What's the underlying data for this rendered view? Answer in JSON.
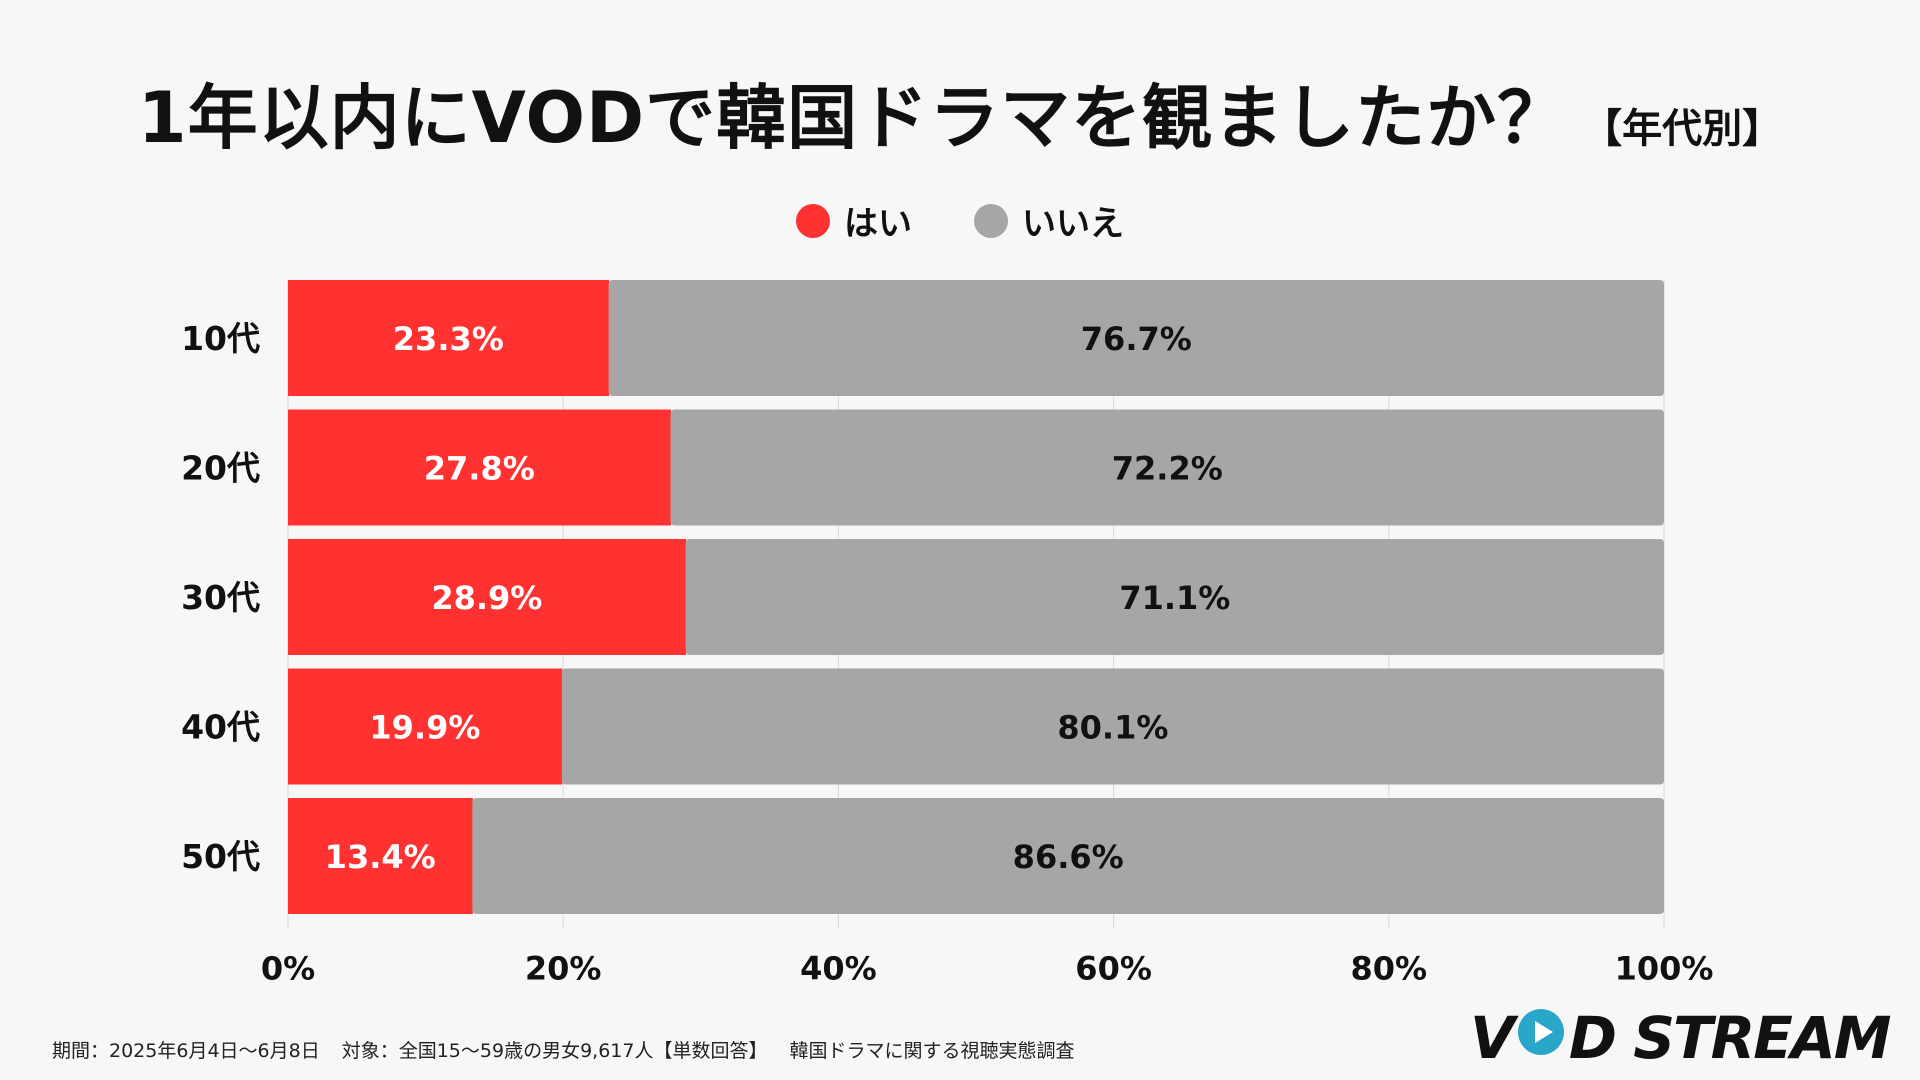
{
  "title": {
    "main": "1年以内にVODで韓国ドラマを観ましたか？",
    "sub": "【年代別】"
  },
  "legend": [
    {
      "label": "はい",
      "color": "#ff3131"
    },
    {
      "label": "いいえ",
      "color": "#a6a6a6"
    }
  ],
  "chart_data": {
    "type": "bar",
    "orientation": "horizontal",
    "stacked": true,
    "title": "1年以内にVODで韓国ドラマを観ましたか？【年代別】",
    "categories": [
      "10代",
      "20代",
      "30代",
      "40代",
      "50代"
    ],
    "series": [
      {
        "name": "はい",
        "color": "#ff3131",
        "label_color": "#ffffff",
        "values": [
          23.3,
          27.8,
          28.9,
          19.9,
          13.4
        ]
      },
      {
        "name": "いいえ",
        "color": "#a6a6a6",
        "label_color": "#111111",
        "values": [
          76.7,
          72.2,
          71.1,
          80.1,
          86.6
        ]
      }
    ],
    "xlim": [
      0,
      100
    ],
    "x_ticks": [
      "0%",
      "20%",
      "40%",
      "60%",
      "80%",
      "100%"
    ],
    "x_tick_values": [
      0,
      20,
      40,
      60,
      80,
      100
    ],
    "grid": true,
    "legend_position": "top-center"
  },
  "footer": {
    "period": "期間：2025年6月4日〜6月8日",
    "target": "対象：全国15〜59歳の男女9,617人【単数回答】",
    "survey": "韓国ドラマに関する視聴実態調査"
  },
  "logo": {
    "left": "V",
    "right": "D STREAM"
  }
}
